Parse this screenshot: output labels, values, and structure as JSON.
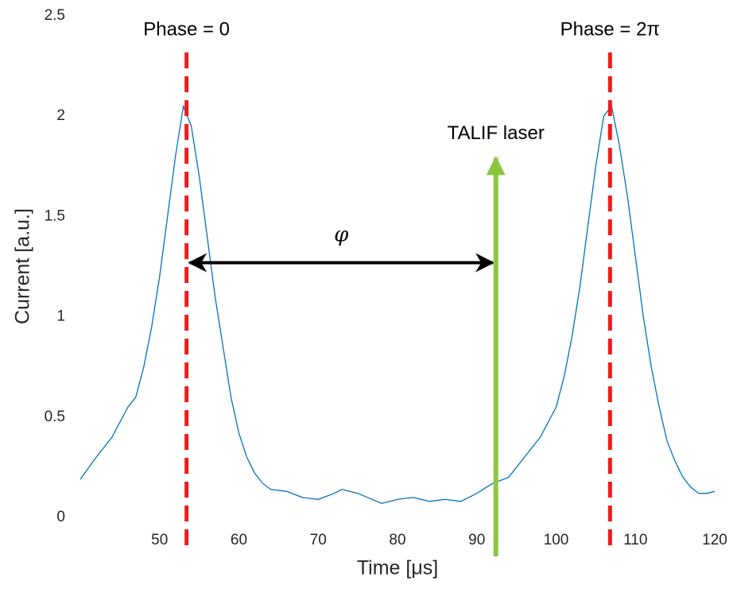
{
  "chart_data": {
    "type": "line",
    "xlabel": "Time [μs]",
    "ylabel": "Current [a.u.]",
    "x": [
      40,
      42,
      44,
      46,
      47,
      48,
      49,
      50,
      51,
      52,
      53,
      54,
      55,
      56,
      57,
      58,
      59,
      60,
      61,
      62,
      63,
      64,
      66,
      68,
      70,
      72,
      73,
      75,
      78,
      80,
      82,
      84,
      86,
      88,
      90,
      92,
      94,
      96,
      98,
      100,
      101,
      102,
      103,
      104,
      105,
      106,
      107,
      108,
      109,
      110,
      111,
      112,
      113,
      114,
      115,
      116,
      117,
      118,
      119,
      120
    ],
    "values": [
      0.19,
      0.3,
      0.4,
      0.55,
      0.6,
      0.75,
      0.95,
      1.2,
      1.5,
      1.8,
      2.05,
      1.95,
      1.7,
      1.4,
      1.1,
      0.85,
      0.6,
      0.42,
      0.3,
      0.22,
      0.17,
      0.14,
      0.13,
      0.1,
      0.09,
      0.12,
      0.14,
      0.12,
      0.07,
      0.09,
      0.1,
      0.08,
      0.09,
      0.08,
      0.12,
      0.17,
      0.2,
      0.3,
      0.4,
      0.55,
      0.7,
      0.9,
      1.15,
      1.45,
      1.75,
      2.0,
      2.05,
      1.85,
      1.6,
      1.3,
      1.0,
      0.75,
      0.55,
      0.38,
      0.28,
      0.2,
      0.15,
      0.12,
      0.12,
      0.13
    ],
    "color": "#0072bd",
    "xlim": [
      40,
      120
    ],
    "ylim": [
      0,
      2.5
    ],
    "xticks": [
      50,
      60,
      70,
      80,
      90,
      100,
      110,
      120
    ],
    "yticks": [
      0,
      0.5,
      1,
      1.5,
      2,
      2.5
    ],
    "vlines": [
      {
        "x": 53.4,
        "label": "Phase = 0",
        "color": "#ee1c1c"
      },
      {
        "x": 106.8,
        "label": "Phase = 2π",
        "color": "#ee1c1c"
      }
    ],
    "laser": {
      "x": 92.4,
      "y": 1.8,
      "label": "TALIF laser",
      "color": "#8cc63f"
    },
    "span": {
      "x": [
        53.4,
        92.4
      ],
      "y": 1.27,
      "label": "φ",
      "color": "#000000"
    }
  }
}
